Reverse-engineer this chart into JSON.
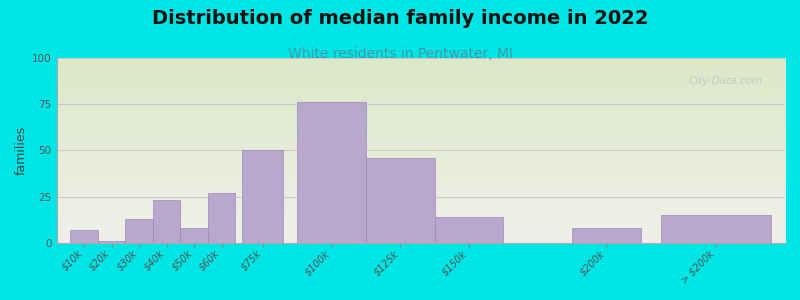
{
  "title": "Distribution of median family income in 2022",
  "subtitle": "White residents in Pentwater, MI",
  "ylabel": "families",
  "categories": [
    "$10k",
    "$20k",
    "$30k",
    "$40k",
    "$50k",
    "$60k",
    "$75k",
    "$100k",
    "$125k",
    "$150k",
    "$200k",
    "> $200k"
  ],
  "x_positions": [
    10,
    20,
    30,
    40,
    50,
    60,
    75,
    100,
    125,
    150,
    200,
    240
  ],
  "bar_widths": [
    10,
    10,
    10,
    10,
    10,
    10,
    15,
    25,
    25,
    25,
    25,
    40
  ],
  "values": [
    7,
    1,
    13,
    23,
    8,
    27,
    50,
    76,
    46,
    14,
    8,
    15
  ],
  "bar_color": "#b8a8cc",
  "bar_edge_color": "#9988bb",
  "background_outer": "#00e5e5",
  "background_inner_top_color": "#dce8c8",
  "background_inner_bottom_color": "#f0f0ea",
  "grid_color": "#c8c8c8",
  "title_fontsize": 14,
  "subtitle_fontsize": 10,
  "subtitle_color": "#4499aa",
  "ylabel_fontsize": 9,
  "tick_fontsize": 7,
  "ylim": [
    0,
    100
  ],
  "yticks": [
    0,
    25,
    50,
    75,
    100
  ],
  "watermark": "City-Data.com"
}
